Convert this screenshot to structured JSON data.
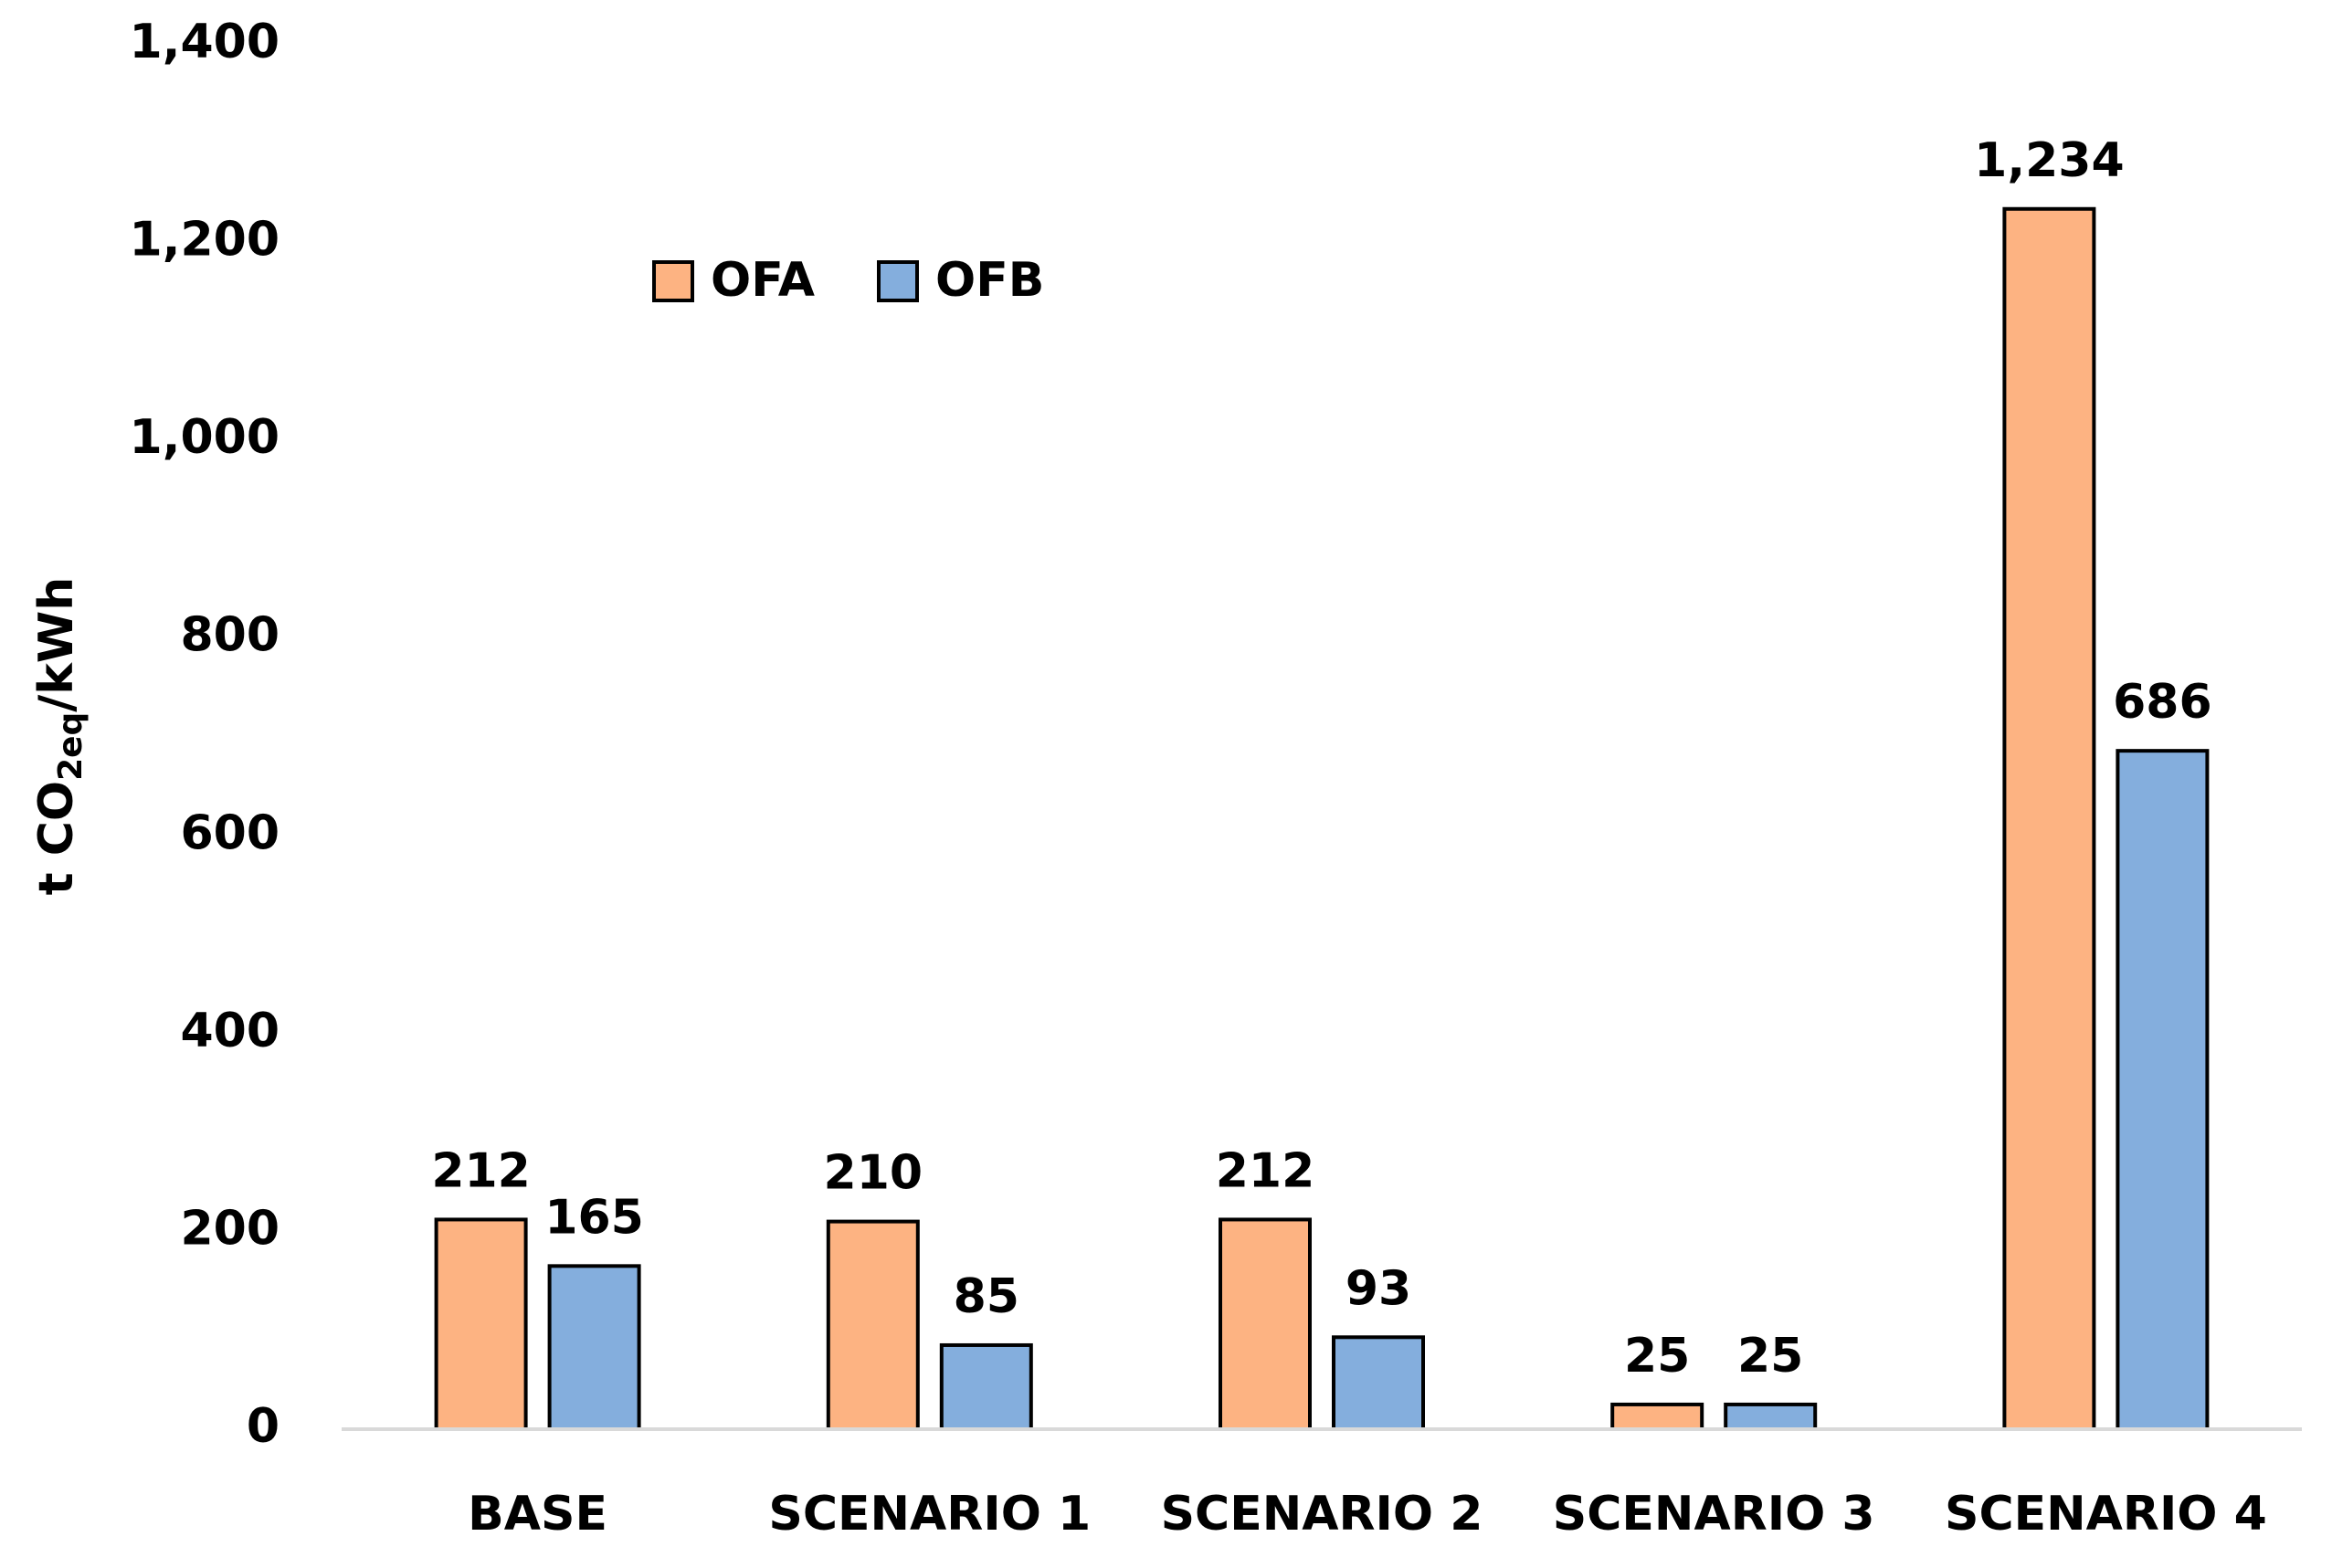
{
  "chart_data": {
    "type": "bar",
    "ylabel": [
      "t  CO",
      "2eq",
      "/kWh"
    ],
    "categories": [
      "BASE",
      "SCENARIO 1",
      "SCENARIO 2",
      "SCENARIO 3",
      "SCENARIO 4"
    ],
    "series": [
      {
        "name": "OFA",
        "color": "#fdb382",
        "values": [
          212,
          210,
          212,
          25,
          1234
        ],
        "value_labels": [
          "212",
          "210",
          "212",
          "25",
          "1,234"
        ]
      },
      {
        "name": "OFB",
        "color": "#84aedd",
        "values": [
          165,
          85,
          93,
          25,
          686
        ],
        "value_labels": [
          "165",
          "85",
          "93",
          "25",
          "686"
        ]
      }
    ],
    "ylim": [
      0,
      1400
    ],
    "yticks": [
      0,
      {
        "value": 200,
        "label": "200"
      },
      400,
      600,
      800,
      {
        "value": 1000,
        "label": "1,000"
      },
      {
        "value": 1200,
        "label": "1,200"
      },
      {
        "value": 1400,
        "label": "1,400"
      }
    ],
    "grid": false,
    "legend": "top-left"
  }
}
